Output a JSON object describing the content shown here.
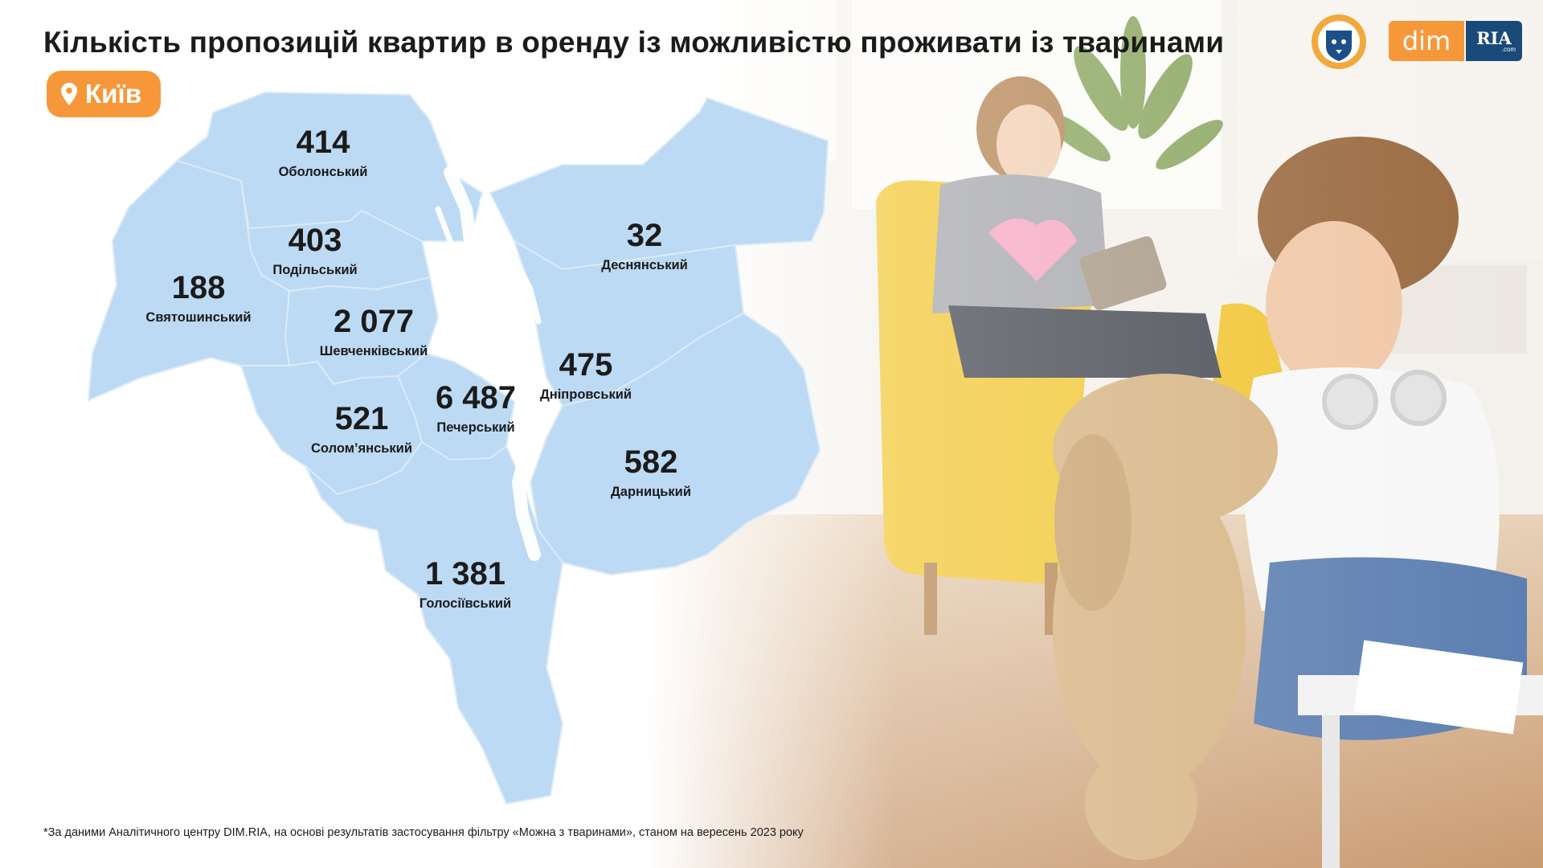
{
  "header": {
    "title": "Кількість пропозицій квартир в оренду із можливістю проживати із тваринами",
    "city": "Київ"
  },
  "logos": {
    "dim": "dim",
    "ria": "RIA",
    "ria_domain": ".com"
  },
  "footnote": "*За даними Аналітичного центру DIM.RIA, на основі результатів застосування фільтру «Можна з тваринами», станом на вересень 2023 року",
  "colors": {
    "accent": "#f6983a",
    "map_fill": "#bcdaf3",
    "map_border": "#dceaf7",
    "text": "#1b1b1b"
  },
  "icons": [
    "location-pin-icon",
    "lion-emblem-icon"
  ],
  "chart_data": {
    "type": "choropleth-map",
    "title": "Кількість пропозицій квартир в оренду із можливістю проживати із тваринами",
    "region": "Київ",
    "districts": [
      {
        "name": "Оболонський",
        "value": "414"
      },
      {
        "name": "Подільський",
        "value": "403"
      },
      {
        "name": "Святошинський",
        "value": "188"
      },
      {
        "name": "Шевченківський",
        "value": "2 077"
      },
      {
        "name": "Печерський",
        "value": "6 487"
      },
      {
        "name": "Солом’янський",
        "value": "521"
      },
      {
        "name": "Деснянський",
        "value": "32"
      },
      {
        "name": "Дніпровський",
        "value": "475"
      },
      {
        "name": "Дарницький",
        "value": "582"
      },
      {
        "name": "Голосіївський",
        "value": "1 381"
      }
    ]
  }
}
